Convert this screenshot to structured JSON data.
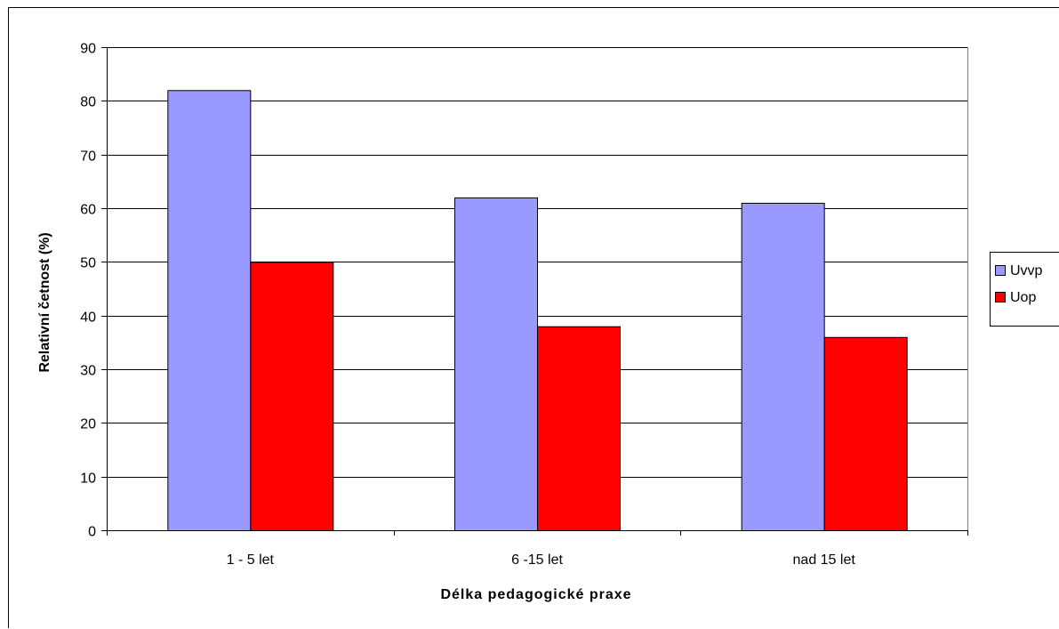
{
  "chart_data": {
    "type": "bar",
    "title": "",
    "xlabel": "Délka pedagogické praxe",
    "ylabel": "Relativní četnost (%)",
    "categories": [
      "1 - 5 let",
      "6 -15 let",
      "nad 15 let"
    ],
    "series": [
      {
        "name": "Uvvp",
        "values": [
          82,
          62,
          61
        ],
        "color": "#9999ff"
      },
      {
        "name": "Uop",
        "values": [
          50,
          38,
          36
        ],
        "color": "#ff0000"
      }
    ],
    "ylim": [
      0,
      90
    ],
    "yticks": [
      0,
      10,
      20,
      30,
      40,
      50,
      60,
      70,
      80,
      90
    ],
    "grid": true,
    "legend": "right"
  }
}
